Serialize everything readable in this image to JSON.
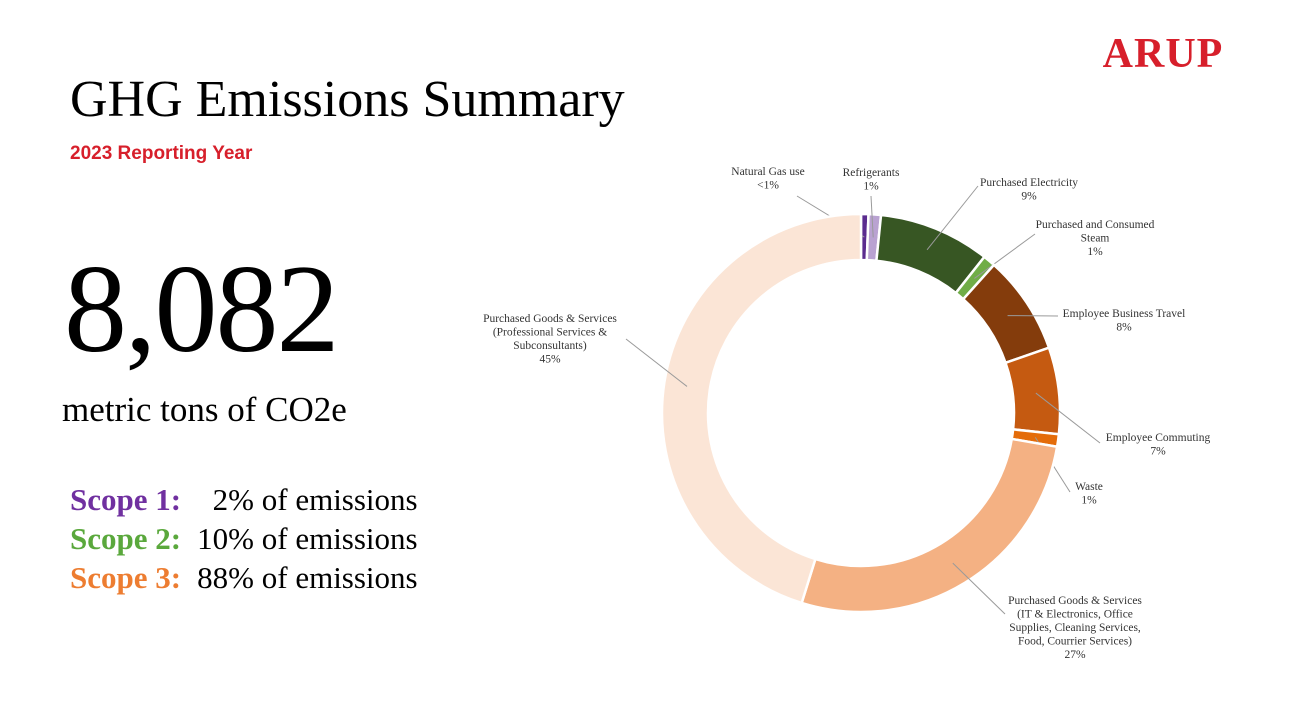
{
  "logo": "ARUP",
  "title": "GHG Emissions Summary",
  "subtitle": "2023 Reporting Year",
  "total": {
    "value": "8,082",
    "unit": "metric tons of CO2e"
  },
  "scopes": [
    {
      "label": "Scope 1:",
      "percent": "2%",
      "suffix": "of emissions",
      "color": "#7030a0"
    },
    {
      "label": "Scope 2:",
      "percent": "10%",
      "suffix": "of emissions",
      "color": "#5aa83c"
    },
    {
      "label": "Scope 3:",
      "percent": "88%",
      "suffix": "of emissions",
      "color": "#ed7d31"
    }
  ],
  "chart_data": {
    "type": "pie",
    "variant": "donut",
    "start_at": "top",
    "direction": "clockwise",
    "slices": [
      {
        "name": "Natural Gas use",
        "value": 0.6,
        "label_lines": [
          "Natural Gas use",
          "<1%"
        ],
        "color": "#5b2c8f"
      },
      {
        "name": "Refrigerants",
        "value": 1,
        "label_lines": [
          "Refrigerants",
          "1%"
        ],
        "color": "#b9a2d1"
      },
      {
        "name": "Purchased Electricity",
        "value": 9,
        "label_lines": [
          "Purchased Electricity",
          "9%"
        ],
        "color": "#375623"
      },
      {
        "name": "Purchased and Consumed Steam",
        "value": 1,
        "label_lines": [
          "Purchased and Consumed",
          "Steam",
          "1%"
        ],
        "color": "#70ad47"
      },
      {
        "name": "Employee Business Travel",
        "value": 8,
        "label_lines": [
          "Employee Business Travel",
          "8%"
        ],
        "color": "#843c0c"
      },
      {
        "name": "Employee Commuting",
        "value": 7,
        "label_lines": [
          "Employee Commuting",
          "7%"
        ],
        "color": "#c55a11"
      },
      {
        "name": "Waste",
        "value": 1,
        "label_lines": [
          "Waste",
          "1%"
        ],
        "color": "#e46c0a"
      },
      {
        "name": "Purchased Goods & Services (IT & Electronics, Office Supplies, Cleaning Services, Food, Courrier Services)",
        "value": 27,
        "label_lines": [
          "Purchased Goods & Services",
          "(IT & Electronics, Office",
          "Supplies, Cleaning Services,",
          "Food, Courrier Services)",
          "27%"
        ],
        "color": "#f4b183"
      },
      {
        "name": "Purchased Goods & Services (Professional Services & Subconsultants)",
        "value": 45,
        "label_lines": [
          "Purchased Goods & Services",
          "(Professional Services &",
          "Subconsultants)",
          "45%"
        ],
        "color": "#fbe5d6"
      }
    ]
  }
}
